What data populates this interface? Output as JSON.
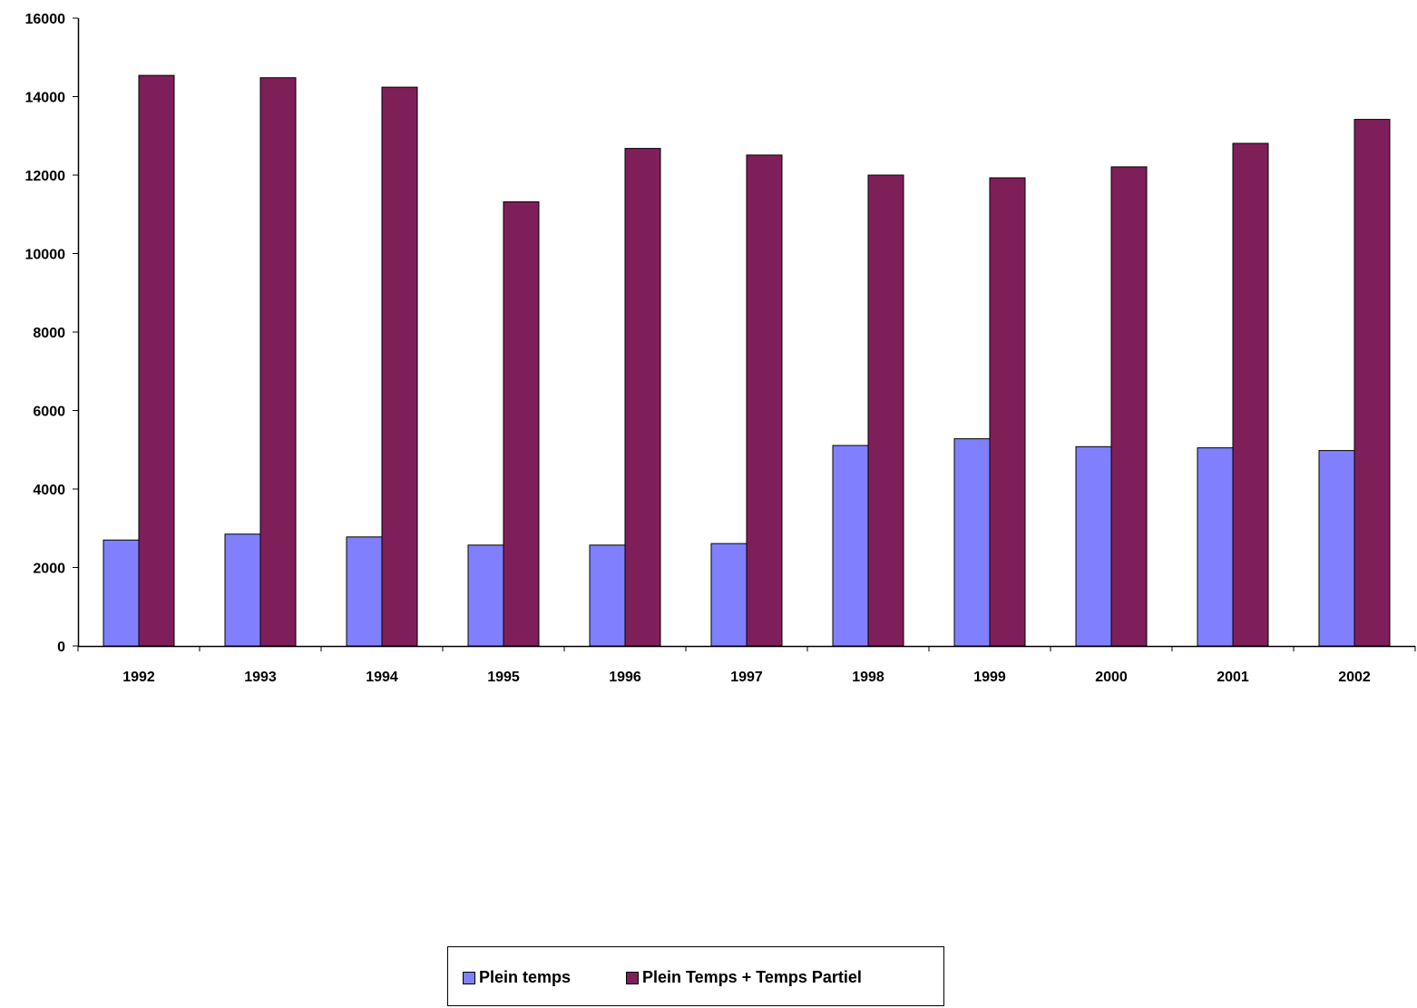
{
  "chart_data": {
    "type": "bar",
    "categories": [
      "1992",
      "1993",
      "1994",
      "1995",
      "1996",
      "1997",
      "1998",
      "1999",
      "2000",
      "2001",
      "2002"
    ],
    "series": [
      {
        "name": "Plein temps",
        "color": "#8080ff",
        "values": [
          2700,
          2850,
          2780,
          2570,
          2570,
          2610,
          5110,
          5280,
          5080,
          5050,
          4980
        ]
      },
      {
        "name": "Plein Temps + Temps Partiel",
        "color": "#7f1f5a",
        "values": [
          14540,
          14480,
          14240,
          11320,
          12680,
          12510,
          12000,
          11930,
          12210,
          12810,
          13420
        ]
      }
    ],
    "ylim": [
      0,
      16000
    ],
    "yticks": [
      "0",
      "2000",
      "4000",
      "6000",
      "8000",
      "10000",
      "12000",
      "14000",
      "16000"
    ],
    "title": "",
    "xlabel": "",
    "ylabel": "",
    "grid": false,
    "legend_position": "bottom"
  }
}
